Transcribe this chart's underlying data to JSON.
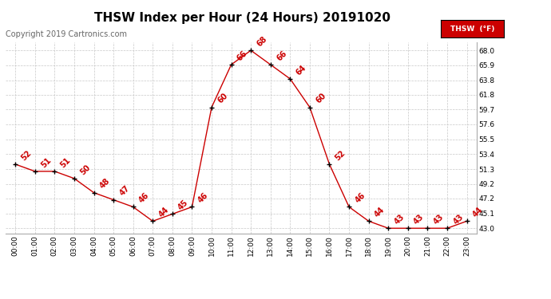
{
  "title": "THSW Index per Hour (24 Hours) 20191020",
  "copyright": "Copyright 2019 Cartronics.com",
  "legend_label": "THSW  (°F)",
  "hours": [
    0,
    1,
    2,
    3,
    4,
    5,
    6,
    7,
    8,
    9,
    10,
    11,
    12,
    13,
    14,
    15,
    16,
    17,
    18,
    19,
    20,
    21,
    22,
    23
  ],
  "values": [
    52,
    51,
    51,
    50,
    48,
    47,
    46,
    44,
    45,
    46,
    60,
    66,
    68,
    66,
    64,
    60,
    52,
    46,
    44,
    43,
    43,
    43,
    43,
    44
  ],
  "xlabels": [
    "00:00",
    "01:00",
    "02:00",
    "03:00",
    "04:00",
    "05:00",
    "06:00",
    "07:00",
    "08:00",
    "09:00",
    "10:00",
    "11:00",
    "12:00",
    "13:00",
    "14:00",
    "15:00",
    "16:00",
    "17:00",
    "18:00",
    "19:00",
    "20:00",
    "21:00",
    "22:00",
    "23:00"
  ],
  "yticks": [
    43.0,
    45.1,
    47.2,
    49.2,
    51.3,
    53.4,
    55.5,
    57.6,
    59.7,
    61.8,
    63.8,
    65.9,
    68.0
  ],
  "ylim": [
    42.3,
    69.2
  ],
  "line_color": "#cc0000",
  "marker_color": "#000000",
  "label_color": "#cc0000",
  "bg_color": "#ffffff",
  "grid_color": "#c8c8c8",
  "title_fontsize": 11,
  "copyright_fontsize": 7,
  "legend_bg": "#cc0000",
  "legend_text_color": "#ffffff",
  "label_fontsize": 7
}
